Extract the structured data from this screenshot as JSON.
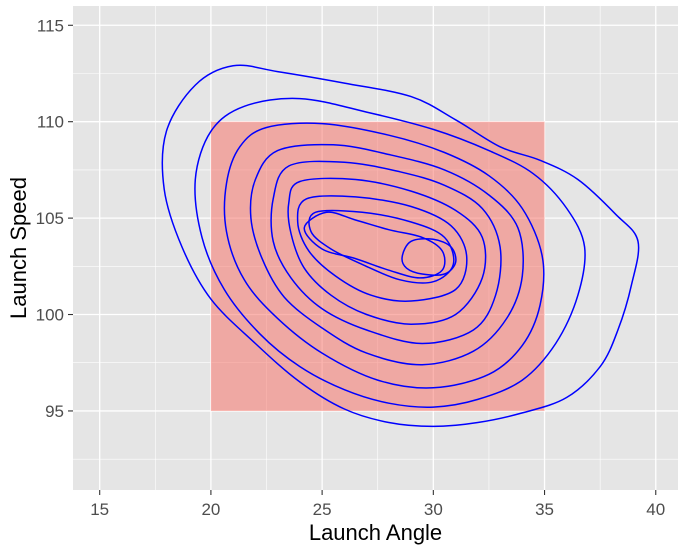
{
  "chart_data": {
    "type": "contour",
    "xlabel": "Launch Angle",
    "ylabel": "Launch Speed",
    "xlim": [
      13.8,
      41.0
    ],
    "ylim": [
      90.9,
      116.0
    ],
    "x_ticks": [
      15,
      20,
      25,
      30,
      35,
      40
    ],
    "y_ticks": [
      95,
      100,
      105,
      110,
      115
    ],
    "grid": true,
    "background_color": "#e5e5e5",
    "grid_color": "#ffffff",
    "region": {
      "x_min": 20,
      "x_max": 35,
      "y_min": 95,
      "y_max": 110,
      "color": "#f8766d"
    },
    "contour_color": "#0000ff",
    "contours": [
      [
        [
          21.0,
          112.9
        ],
        [
          23.0,
          112.6
        ],
        [
          26.0,
          112.0
        ],
        [
          29.0,
          111.3
        ],
        [
          31.0,
          110.1
        ],
        [
          33.0,
          108.7
        ],
        [
          34.8,
          108.0
        ],
        [
          36.5,
          107.0
        ],
        [
          38.2,
          105.2
        ],
        [
          39.2,
          103.8
        ],
        [
          38.9,
          101.5
        ],
        [
          38.3,
          99.2
        ],
        [
          37.5,
          97.3
        ],
        [
          36.0,
          95.7
        ],
        [
          34.0,
          94.9
        ],
        [
          32.0,
          94.4
        ],
        [
          30.0,
          94.2
        ],
        [
          28.0,
          94.4
        ],
        [
          26.0,
          95.1
        ],
        [
          24.0,
          96.5
        ],
        [
          22.0,
          98.5
        ],
        [
          20.0,
          100.8
        ],
        [
          18.7,
          103.5
        ],
        [
          17.9,
          106.5
        ],
        [
          18.0,
          109.5
        ],
        [
          19.3,
          111.9
        ],
        [
          21.0,
          112.9
        ]
      ],
      [
        [
          21.5,
          110.8
        ],
        [
          24.0,
          111.2
        ],
        [
          27.0,
          110.5
        ],
        [
          30.0,
          109.6
        ],
        [
          32.5,
          108.5
        ],
        [
          34.5,
          107.3
        ],
        [
          36.0,
          105.5
        ],
        [
          36.8,
          103.5
        ],
        [
          36.5,
          101.0
        ],
        [
          35.5,
          98.5
        ],
        [
          34.0,
          96.6
        ],
        [
          32.0,
          95.6
        ],
        [
          30.0,
          95.2
        ],
        [
          28.0,
          95.4
        ],
        [
          26.0,
          96.1
        ],
        [
          24.0,
          97.3
        ],
        [
          22.2,
          99.0
        ],
        [
          20.6,
          101.3
        ],
        [
          19.6,
          104.0
        ],
        [
          19.3,
          107.0
        ],
        [
          20.0,
          109.5
        ],
        [
          21.5,
          110.8
        ]
      ],
      [
        [
          22.5,
          109.7
        ],
        [
          25.0,
          109.9
        ],
        [
          28.0,
          109.3
        ],
        [
          30.5,
          108.4
        ],
        [
          32.5,
          107.2
        ],
        [
          34.0,
          105.5
        ],
        [
          34.9,
          103.0
        ],
        [
          34.8,
          100.5
        ],
        [
          34.0,
          98.4
        ],
        [
          32.5,
          96.9
        ],
        [
          30.0,
          96.2
        ],
        [
          27.5,
          96.6
        ],
        [
          25.0,
          98.0
        ],
        [
          23.0,
          99.8
        ],
        [
          21.5,
          101.8
        ],
        [
          20.7,
          104.3
        ],
        [
          20.7,
          106.8
        ],
        [
          21.3,
          108.7
        ],
        [
          22.5,
          109.7
        ]
      ],
      [
        [
          23.0,
          108.5
        ],
        [
          25.5,
          108.8
        ],
        [
          28.0,
          108.3
        ],
        [
          30.5,
          107.5
        ],
        [
          32.5,
          106.2
        ],
        [
          33.8,
          104.5
        ],
        [
          34.0,
          102.0
        ],
        [
          33.3,
          99.8
        ],
        [
          31.8,
          98.1
        ],
        [
          29.5,
          97.4
        ],
        [
          27.0,
          98.0
        ],
        [
          25.0,
          99.3
        ],
        [
          23.3,
          100.9
        ],
        [
          22.3,
          102.9
        ],
        [
          21.8,
          105.0
        ],
        [
          22.0,
          107.0
        ],
        [
          23.0,
          108.5
        ]
      ],
      [
        [
          23.5,
          107.7
        ],
        [
          26.0,
          107.9
        ],
        [
          28.5,
          107.4
        ],
        [
          30.5,
          106.7
        ],
        [
          32.2,
          105.5
        ],
        [
          33.0,
          103.5
        ],
        [
          32.8,
          101.0
        ],
        [
          31.8,
          99.2
        ],
        [
          29.5,
          98.5
        ],
        [
          27.0,
          99.2
        ],
        [
          25.0,
          100.3
        ],
        [
          23.6,
          101.9
        ],
        [
          22.8,
          103.8
        ],
        [
          22.8,
          106.0
        ],
        [
          23.5,
          107.7
        ]
      ],
      [
        [
          24.0,
          106.9
        ],
        [
          26.5,
          107.0
        ],
        [
          29.0,
          106.4
        ],
        [
          31.0,
          105.4
        ],
        [
          32.2,
          104.0
        ],
        [
          32.2,
          101.9
        ],
        [
          31.0,
          100.0
        ],
        [
          29.0,
          99.5
        ],
        [
          27.0,
          100.0
        ],
        [
          25.4,
          101.0
        ],
        [
          24.2,
          102.4
        ],
        [
          23.6,
          104.2
        ],
        [
          23.5,
          105.8
        ],
        [
          24.0,
          106.9
        ]
      ],
      [
        [
          24.3,
          106.0
        ],
        [
          26.5,
          106.1
        ],
        [
          29.0,
          105.6
        ],
        [
          30.8,
          104.6
        ],
        [
          31.5,
          103.0
        ],
        [
          31.0,
          101.3
        ],
        [
          29.0,
          100.7
        ],
        [
          27.2,
          101.0
        ],
        [
          25.6,
          102.0
        ],
        [
          24.4,
          103.3
        ],
        [
          23.9,
          104.8
        ],
        [
          24.3,
          106.0
        ]
      ],
      [
        [
          24.7,
          105.3
        ],
        [
          26.8,
          105.3
        ],
        [
          29.0,
          104.8
        ],
        [
          30.5,
          104.0
        ],
        [
          30.9,
          102.6
        ],
        [
          30.0,
          101.7
        ],
        [
          28.5,
          101.8
        ],
        [
          26.8,
          102.6
        ],
        [
          25.4,
          103.4
        ],
        [
          24.5,
          104.3
        ],
        [
          24.7,
          105.3
        ]
      ],
      [
        [
          24.2,
          104.5
        ],
        [
          25.2,
          105.3
        ],
        [
          26.5,
          104.9
        ],
        [
          28.0,
          104.4
        ],
        [
          29.5,
          104.0
        ],
        [
          30.4,
          103.3
        ],
        [
          30.4,
          102.3
        ],
        [
          29.4,
          101.9
        ],
        [
          28.0,
          102.3
        ],
        [
          26.5,
          102.9
        ],
        [
          25.0,
          103.4
        ],
        [
          24.2,
          104.5
        ]
      ],
      [
        [
          28.6,
          103.0
        ],
        [
          29.0,
          103.8
        ],
        [
          30.0,
          103.9
        ],
        [
          30.8,
          103.5
        ],
        [
          31.0,
          102.7
        ],
        [
          30.5,
          102.1
        ],
        [
          29.5,
          102.1
        ],
        [
          28.8,
          102.4
        ],
        [
          28.6,
          103.0
        ]
      ]
    ]
  }
}
